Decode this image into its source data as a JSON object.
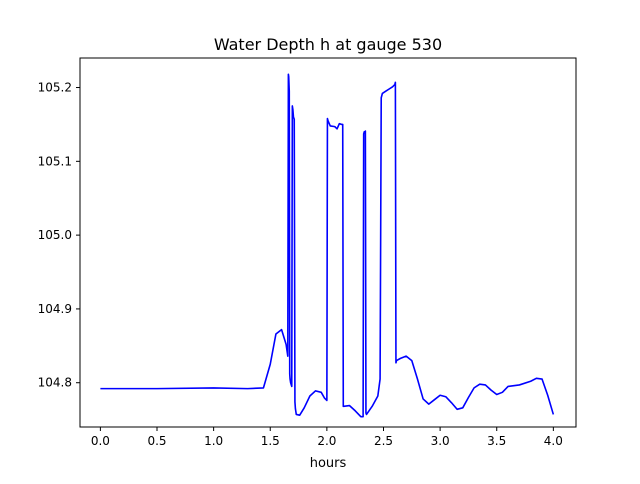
{
  "chart_data": {
    "type": "line",
    "title": "Water Depth h at gauge 530",
    "xlabel": "hours",
    "ylabel": "",
    "xlim": [
      -0.18,
      4.2
    ],
    "ylim": [
      104.74,
      105.24
    ],
    "xticks": [
      0.0,
      0.5,
      1.0,
      1.5,
      2.0,
      2.5,
      3.0,
      3.5,
      4.0
    ],
    "xtick_labels": [
      "0.0",
      "0.5",
      "1.0",
      "1.5",
      "2.0",
      "2.5",
      "3.0",
      "3.5",
      "4.0"
    ],
    "yticks": [
      104.8,
      104.9,
      105.0,
      105.1,
      105.2
    ],
    "ytick_labels": [
      "104.8",
      "104.9",
      "105.0",
      "105.1",
      "105.2"
    ],
    "grid": false,
    "legend": "none",
    "series": [
      {
        "color": "#0000ff",
        "x": [
          0.0,
          0.5,
          1.0,
          1.3,
          1.44,
          1.5,
          1.55,
          1.6,
          1.64,
          1.655,
          1.66,
          1.663,
          1.668,
          1.672,
          1.675,
          1.68,
          1.69,
          1.695,
          1.7,
          1.705,
          1.712,
          1.718,
          1.722,
          1.73,
          1.76,
          1.8,
          1.85,
          1.9,
          1.95,
          1.98,
          2.0,
          2.005,
          2.01,
          2.03,
          2.07,
          2.09,
          2.11,
          2.13,
          2.14,
          2.145,
          2.15,
          2.2,
          2.25,
          2.3,
          2.32,
          2.325,
          2.33,
          2.335,
          2.34,
          2.345,
          2.35,
          2.4,
          2.45,
          2.47,
          2.48,
          2.49,
          2.52,
          2.55,
          2.58,
          2.6,
          2.605,
          2.61,
          2.615,
          2.65,
          2.7,
          2.75,
          2.8,
          2.85,
          2.9,
          2.95,
          3.0,
          3.05,
          3.1,
          3.15,
          3.2,
          3.25,
          3.3,
          3.35,
          3.4,
          3.45,
          3.5,
          3.55,
          3.6,
          3.7,
          3.8,
          3.85,
          3.9,
          3.95,
          4.0
        ],
        "y": [
          104.792,
          104.792,
          104.793,
          104.792,
          104.793,
          104.825,
          104.866,
          104.872,
          104.852,
          104.836,
          105.218,
          105.215,
          105.195,
          104.812,
          104.805,
          104.8,
          104.795,
          105.175,
          105.17,
          105.16,
          105.157,
          104.774,
          104.765,
          104.757,
          104.756,
          104.766,
          104.782,
          104.789,
          104.787,
          104.779,
          104.776,
          105.158,
          105.155,
          105.148,
          105.147,
          105.144,
          105.151,
          105.15,
          105.15,
          104.768,
          104.768,
          104.769,
          104.762,
          104.754,
          104.754,
          105.137,
          105.14,
          105.14,
          105.141,
          104.759,
          104.757,
          104.768,
          104.782,
          104.805,
          105.186,
          105.192,
          105.195,
          105.198,
          105.201,
          105.204,
          105.207,
          104.827,
          104.83,
          104.833,
          104.836,
          104.83,
          104.805,
          104.778,
          104.771,
          104.777,
          104.783,
          104.781,
          104.773,
          104.764,
          104.766,
          104.78,
          104.793,
          104.798,
          104.797,
          104.79,
          104.784,
          104.787,
          104.795,
          104.797,
          104.802,
          104.806,
          104.805,
          104.783,
          104.757
        ]
      }
    ]
  }
}
